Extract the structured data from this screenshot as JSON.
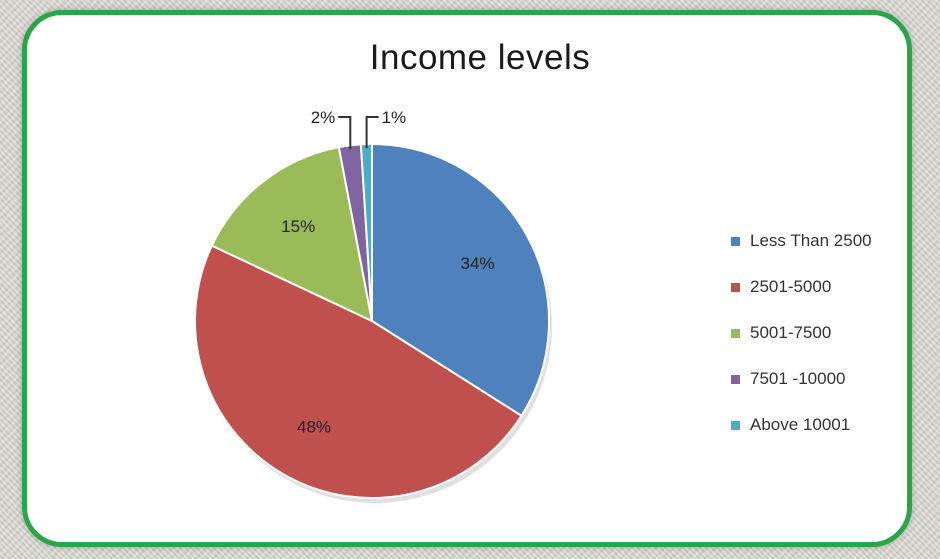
{
  "chart_data": {
    "type": "pie",
    "title": "Income levels",
    "slices": [
      {
        "label": "Less Than 2500",
        "value": 34,
        "value_label": "34%",
        "color": "#4f81bd"
      },
      {
        "label": "2501-5000",
        "value": 48,
        "value_label": "48%",
        "color": "#c0504d"
      },
      {
        "label": "5001-7500",
        "value": 15,
        "value_label": "15%",
        "color": "#9bbb59"
      },
      {
        "label": "7501 -10000",
        "value": 2,
        "value_label": "2%",
        "color": "#8064a2"
      },
      {
        "label": "Above 10001",
        "value": 1,
        "value_label": "1%",
        "color": "#4bacc6"
      }
    ],
    "legend_position": "right"
  },
  "colors": {
    "frame_border": "#2aa547",
    "panel_background": "#ffffff"
  }
}
